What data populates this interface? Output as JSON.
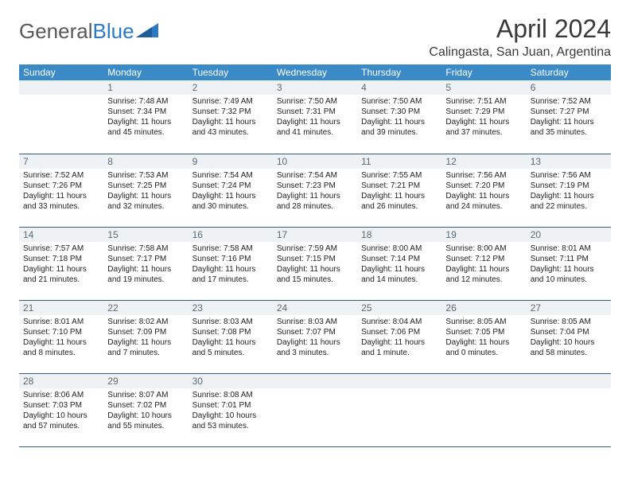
{
  "colors": {
    "header_bg": "#3a8ac8",
    "header_text": "#ffffff",
    "daynum_bg": "#eef2f5",
    "daynum_text": "#5a6a78",
    "row_border": "#3a5a78",
    "logo_grey": "#5a5a5a",
    "logo_blue": "#2b7bc3",
    "body_text": "#222222",
    "page_bg": "#ffffff"
  },
  "logo": {
    "part1": "General",
    "part2": "Blue"
  },
  "title": "April 2024",
  "location": "Calingasta, San Juan, Argentina",
  "weekdays": [
    "Sunday",
    "Monday",
    "Tuesday",
    "Wednesday",
    "Thursday",
    "Friday",
    "Saturday"
  ],
  "weeks": [
    [
      null,
      {
        "n": "1",
        "sr": "Sunrise: 7:48 AM",
        "ss": "Sunset: 7:34 PM",
        "dl": "Daylight: 11 hours and 45 minutes."
      },
      {
        "n": "2",
        "sr": "Sunrise: 7:49 AM",
        "ss": "Sunset: 7:32 PM",
        "dl": "Daylight: 11 hours and 43 minutes."
      },
      {
        "n": "3",
        "sr": "Sunrise: 7:50 AM",
        "ss": "Sunset: 7:31 PM",
        "dl": "Daylight: 11 hours and 41 minutes."
      },
      {
        "n": "4",
        "sr": "Sunrise: 7:50 AM",
        "ss": "Sunset: 7:30 PM",
        "dl": "Daylight: 11 hours and 39 minutes."
      },
      {
        "n": "5",
        "sr": "Sunrise: 7:51 AM",
        "ss": "Sunset: 7:29 PM",
        "dl": "Daylight: 11 hours and 37 minutes."
      },
      {
        "n": "6",
        "sr": "Sunrise: 7:52 AM",
        "ss": "Sunset: 7:27 PM",
        "dl": "Daylight: 11 hours and 35 minutes."
      }
    ],
    [
      {
        "n": "7",
        "sr": "Sunrise: 7:52 AM",
        "ss": "Sunset: 7:26 PM",
        "dl": "Daylight: 11 hours and 33 minutes."
      },
      {
        "n": "8",
        "sr": "Sunrise: 7:53 AM",
        "ss": "Sunset: 7:25 PM",
        "dl": "Daylight: 11 hours and 32 minutes."
      },
      {
        "n": "9",
        "sr": "Sunrise: 7:54 AM",
        "ss": "Sunset: 7:24 PM",
        "dl": "Daylight: 11 hours and 30 minutes."
      },
      {
        "n": "10",
        "sr": "Sunrise: 7:54 AM",
        "ss": "Sunset: 7:23 PM",
        "dl": "Daylight: 11 hours and 28 minutes."
      },
      {
        "n": "11",
        "sr": "Sunrise: 7:55 AM",
        "ss": "Sunset: 7:21 PM",
        "dl": "Daylight: 11 hours and 26 minutes."
      },
      {
        "n": "12",
        "sr": "Sunrise: 7:56 AM",
        "ss": "Sunset: 7:20 PM",
        "dl": "Daylight: 11 hours and 24 minutes."
      },
      {
        "n": "13",
        "sr": "Sunrise: 7:56 AM",
        "ss": "Sunset: 7:19 PM",
        "dl": "Daylight: 11 hours and 22 minutes."
      }
    ],
    [
      {
        "n": "14",
        "sr": "Sunrise: 7:57 AM",
        "ss": "Sunset: 7:18 PM",
        "dl": "Daylight: 11 hours and 21 minutes."
      },
      {
        "n": "15",
        "sr": "Sunrise: 7:58 AM",
        "ss": "Sunset: 7:17 PM",
        "dl": "Daylight: 11 hours and 19 minutes."
      },
      {
        "n": "16",
        "sr": "Sunrise: 7:58 AM",
        "ss": "Sunset: 7:16 PM",
        "dl": "Daylight: 11 hours and 17 minutes."
      },
      {
        "n": "17",
        "sr": "Sunrise: 7:59 AM",
        "ss": "Sunset: 7:15 PM",
        "dl": "Daylight: 11 hours and 15 minutes."
      },
      {
        "n": "18",
        "sr": "Sunrise: 8:00 AM",
        "ss": "Sunset: 7:14 PM",
        "dl": "Daylight: 11 hours and 14 minutes."
      },
      {
        "n": "19",
        "sr": "Sunrise: 8:00 AM",
        "ss": "Sunset: 7:12 PM",
        "dl": "Daylight: 11 hours and 12 minutes."
      },
      {
        "n": "20",
        "sr": "Sunrise: 8:01 AM",
        "ss": "Sunset: 7:11 PM",
        "dl": "Daylight: 11 hours and 10 minutes."
      }
    ],
    [
      {
        "n": "21",
        "sr": "Sunrise: 8:01 AM",
        "ss": "Sunset: 7:10 PM",
        "dl": "Daylight: 11 hours and 8 minutes."
      },
      {
        "n": "22",
        "sr": "Sunrise: 8:02 AM",
        "ss": "Sunset: 7:09 PM",
        "dl": "Daylight: 11 hours and 7 minutes."
      },
      {
        "n": "23",
        "sr": "Sunrise: 8:03 AM",
        "ss": "Sunset: 7:08 PM",
        "dl": "Daylight: 11 hours and 5 minutes."
      },
      {
        "n": "24",
        "sr": "Sunrise: 8:03 AM",
        "ss": "Sunset: 7:07 PM",
        "dl": "Daylight: 11 hours and 3 minutes."
      },
      {
        "n": "25",
        "sr": "Sunrise: 8:04 AM",
        "ss": "Sunset: 7:06 PM",
        "dl": "Daylight: 11 hours and 1 minute."
      },
      {
        "n": "26",
        "sr": "Sunrise: 8:05 AM",
        "ss": "Sunset: 7:05 PM",
        "dl": "Daylight: 11 hours and 0 minutes."
      },
      {
        "n": "27",
        "sr": "Sunrise: 8:05 AM",
        "ss": "Sunset: 7:04 PM",
        "dl": "Daylight: 10 hours and 58 minutes."
      }
    ],
    [
      {
        "n": "28",
        "sr": "Sunrise: 8:06 AM",
        "ss": "Sunset: 7:03 PM",
        "dl": "Daylight: 10 hours and 57 minutes."
      },
      {
        "n": "29",
        "sr": "Sunrise: 8:07 AM",
        "ss": "Sunset: 7:02 PM",
        "dl": "Daylight: 10 hours and 55 minutes."
      },
      {
        "n": "30",
        "sr": "Sunrise: 8:08 AM",
        "ss": "Sunset: 7:01 PM",
        "dl": "Daylight: 10 hours and 53 minutes."
      },
      null,
      null,
      null,
      null
    ]
  ]
}
